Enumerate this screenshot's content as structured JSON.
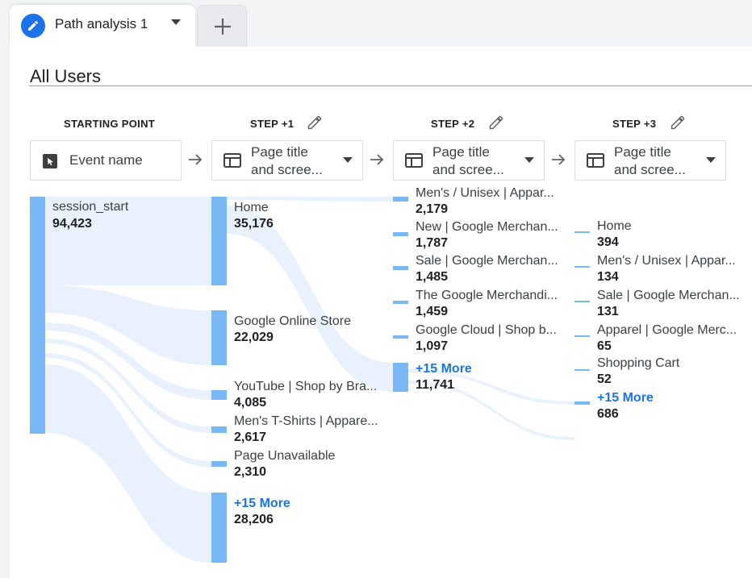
{
  "tab": {
    "label": "Path analysis 1"
  },
  "segment": "All Users",
  "columns": [
    {
      "header": "STARTING POINT",
      "dimension": "Event name"
    },
    {
      "header": "STEP +1",
      "dimension": "Page title and scree..."
    },
    {
      "header": "STEP +2",
      "dimension": "Page title and scree..."
    },
    {
      "header": "STEP +3",
      "dimension": "Page title and scree..."
    }
  ],
  "dimension_lines": [
    "Page title",
    "and scree..."
  ],
  "nodes": {
    "start": [
      {
        "label": "session_start",
        "value": "94,423"
      }
    ],
    "step1": [
      {
        "label": "Home",
        "value": "35,176"
      },
      {
        "label": "Google Online Store",
        "value": "22,029"
      },
      {
        "label": "YouTube | Shop by Bra...",
        "value": "4,085"
      },
      {
        "label": "Men's T-Shirts | Appare...",
        "value": "2,617"
      },
      {
        "label": "Page Unavailable",
        "value": "2,310"
      },
      {
        "label": "+15 More",
        "value": "28,206"
      }
    ],
    "step2": [
      {
        "label": "Men's / Unisex | Appar...",
        "value": "2,179"
      },
      {
        "label": "New | Google Merchan...",
        "value": "1,787"
      },
      {
        "label": "Sale | Google Merchan...",
        "value": "1,485"
      },
      {
        "label": "The Google Merchandi...",
        "value": "1,459"
      },
      {
        "label": "Google Cloud | Shop b...",
        "value": "1,097"
      },
      {
        "label": "+15 More",
        "value": "11,741"
      }
    ],
    "step3": [
      {
        "label": "Home",
        "value": "394"
      },
      {
        "label": "Men's / Unisex | Appar...",
        "value": "134"
      },
      {
        "label": "Sale | Google Merchan...",
        "value": "131"
      },
      {
        "label": "Apparel | Google Merc...",
        "value": "65"
      },
      {
        "label": "Shopping Cart",
        "value": "52"
      },
      {
        "label": "+15 More",
        "value": "686"
      }
    ]
  },
  "colors": {
    "accent": "#1a73e8",
    "node": "#7ab8f5",
    "flow": "#e8f0fe",
    "more": "#1a73e8"
  }
}
